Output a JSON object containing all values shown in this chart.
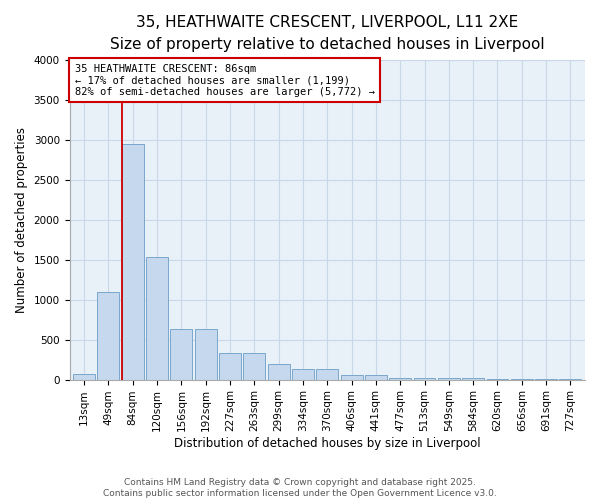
{
  "title_line1": "35, HEATHWAITE CRESCENT, LIVERPOOL, L11 2XE",
  "title_line2": "Size of property relative to detached houses in Liverpool",
  "xlabel": "Distribution of detached houses by size in Liverpool",
  "ylabel": "Number of detached properties",
  "bar_color": "#c5d8ed",
  "bar_edge_color": "#7ba7cc",
  "grid_color": "#c8d8e8",
  "background_color": "#e8f0f8",
  "annotation_box_color": "#cc0000",
  "vline_color": "#cc0000",
  "categories": [
    "13sqm",
    "49sqm",
    "84sqm",
    "120sqm",
    "156sqm",
    "192sqm",
    "227sqm",
    "263sqm",
    "299sqm",
    "334sqm",
    "370sqm",
    "406sqm",
    "441sqm",
    "477sqm",
    "513sqm",
    "549sqm",
    "584sqm",
    "620sqm",
    "656sqm",
    "691sqm",
    "727sqm"
  ],
  "values": [
    70,
    1100,
    2950,
    1540,
    640,
    640,
    330,
    330,
    200,
    130,
    130,
    55,
    55,
    15,
    15,
    15,
    15,
    5,
    5,
    5,
    5
  ],
  "annotation_text": "35 HEATHWAITE CRESCENT: 86sqm\n← 17% of detached houses are smaller (1,199)\n82% of semi-detached houses are larger (5,772) →",
  "vline_x_index": 2,
  "ylim": [
    0,
    4000
  ],
  "yticks": [
    0,
    500,
    1000,
    1500,
    2000,
    2500,
    3000,
    3500,
    4000
  ],
  "title_fontsize": 11,
  "subtitle_fontsize": 9.5,
  "axis_label_fontsize": 8.5,
  "tick_fontsize": 7.5,
  "annotation_fontsize": 7.5,
  "footer_fontsize": 6.5,
  "footer": "Contains HM Land Registry data © Crown copyright and database right 2025.\nContains public sector information licensed under the Open Government Licence v3.0."
}
